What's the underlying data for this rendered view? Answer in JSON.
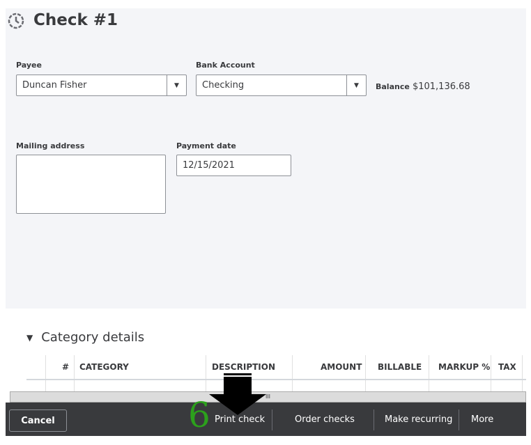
{
  "header": {
    "title": "Check #1",
    "icon": "recent-transactions-icon"
  },
  "form": {
    "payee_label": "Payee",
    "payee_value": "Duncan Fisher",
    "bank_label": "Bank Account",
    "bank_value": "Checking",
    "balance_label": "Balance",
    "balance_value": "$101,136.68",
    "mailing_label": "Mailing address",
    "mailing_value": "",
    "date_label": "Payment date",
    "date_value": "12/15/2021"
  },
  "category": {
    "title": "Category details",
    "columns": [
      "#",
      "CATEGORY",
      "DESCRIPTION",
      "AMOUNT",
      "BILLABLE",
      "MARKUP %",
      "TAX"
    ]
  },
  "scroll": {
    "grip": "III"
  },
  "footer": {
    "cancel": "Cancel",
    "print": "Print check",
    "order": "Order checks",
    "recurring": "Make recurring",
    "more": "More"
  },
  "annotation": {
    "step": "6",
    "color": "#2ca01c"
  }
}
